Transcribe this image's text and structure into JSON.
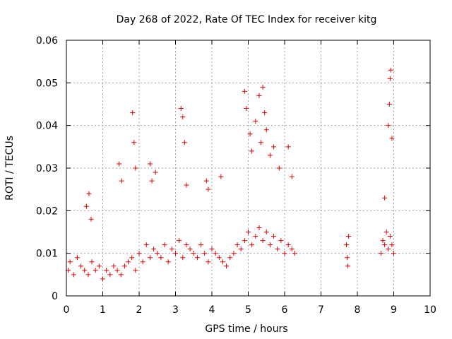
{
  "chart_data": {
    "type": "scatter",
    "title": "Day 268 of 2022, Rate Of TEC Index for receiver kitg",
    "xlabel": "GPS time / hours",
    "ylabel": "ROTI / TECUs",
    "xlim": [
      0,
      10
    ],
    "ylim": [
      0,
      0.06
    ],
    "grid": true,
    "marker": "+",
    "marker_color": "#e00000",
    "x_tick_labels": [
      "0",
      "1",
      "2",
      "3",
      "4",
      "5",
      "6",
      "7",
      "8",
      "9",
      "10"
    ],
    "y_tick_labels": [
      "0",
      "0.01",
      "0.02",
      "0.03",
      "0.04",
      "0.05",
      "0.06"
    ],
    "data_coverage_hours": [
      [
        0.0,
        6.3
      ],
      [
        7.65,
        7.8
      ],
      [
        8.6,
        9.05
      ]
    ],
    "series": [
      {
        "name": "ROTI",
        "x": [
          0.05,
          0.1,
          0.2,
          0.3,
          0.4,
          0.5,
          0.6,
          0.7,
          0.8,
          0.9,
          1.0,
          1.1,
          1.2,
          1.3,
          1.4,
          1.5,
          1.6,
          1.7,
          1.8,
          1.9,
          2.0,
          2.1,
          2.2,
          2.3,
          2.4,
          2.5,
          2.6,
          2.7,
          2.8,
          2.9,
          3.0,
          3.1,
          3.2,
          3.3,
          3.4,
          3.5,
          3.6,
          3.7,
          3.8,
          3.9,
          4.0,
          4.1,
          4.2,
          4.3,
          4.4,
          4.5,
          4.6,
          4.7,
          4.8,
          4.9,
          5.0,
          5.1,
          5.2,
          5.3,
          5.4,
          5.5,
          5.6,
          5.7,
          5.8,
          5.9,
          6.0,
          6.1,
          6.2,
          6.28,
          7.7,
          7.72,
          7.74,
          7.76,
          8.65,
          8.7,
          8.75,
          8.8,
          8.85,
          8.9,
          8.95,
          9.0,
          0.55,
          0.62,
          0.68,
          1.45,
          1.52,
          1.82,
          1.86,
          1.9,
          2.3,
          2.35,
          2.45,
          3.15,
          3.2,
          3.25,
          3.3,
          3.85,
          3.9,
          4.25,
          4.9,
          4.95,
          5.05,
          5.1,
          5.2,
          5.3,
          5.35,
          5.4,
          5.45,
          5.5,
          5.6,
          5.7,
          5.85,
          6.1,
          6.2,
          8.75,
          8.85,
          8.88,
          8.9,
          8.92,
          8.95
        ],
        "y": [
          0.006,
          0.008,
          0.005,
          0.009,
          0.007,
          0.006,
          0.005,
          0.008,
          0.006,
          0.007,
          0.004,
          0.006,
          0.005,
          0.007,
          0.006,
          0.005,
          0.007,
          0.008,
          0.009,
          0.006,
          0.01,
          0.008,
          0.012,
          0.009,
          0.011,
          0.01,
          0.009,
          0.012,
          0.008,
          0.011,
          0.01,
          0.013,
          0.009,
          0.012,
          0.011,
          0.01,
          0.009,
          0.012,
          0.01,
          0.008,
          0.011,
          0.01,
          0.009,
          0.008,
          0.007,
          0.009,
          0.01,
          0.012,
          0.011,
          0.013,
          0.015,
          0.012,
          0.014,
          0.016,
          0.013,
          0.015,
          0.012,
          0.014,
          0.011,
          0.013,
          0.01,
          0.012,
          0.011,
          0.01,
          0.012,
          0.009,
          0.007,
          0.014,
          0.01,
          0.013,
          0.012,
          0.015,
          0.011,
          0.014,
          0.012,
          0.01,
          0.021,
          0.024,
          0.018,
          0.031,
          0.027,
          0.043,
          0.036,
          0.03,
          0.031,
          0.027,
          0.029,
          0.044,
          0.042,
          0.036,
          0.026,
          0.027,
          0.025,
          0.028,
          0.048,
          0.044,
          0.038,
          0.034,
          0.041,
          0.047,
          0.036,
          0.049,
          0.043,
          0.039,
          0.033,
          0.035,
          0.03,
          0.035,
          0.028,
          0.023,
          0.04,
          0.045,
          0.051,
          0.053,
          0.037
        ]
      }
    ]
  }
}
